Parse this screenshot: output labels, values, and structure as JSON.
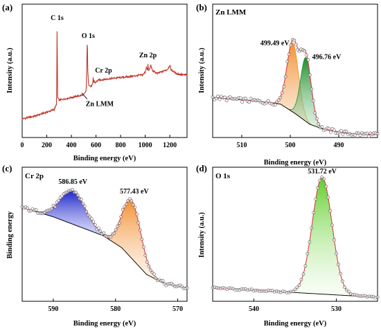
{
  "chart_data": [
    {
      "panel_label": "(a)",
      "type": "line",
      "xlabel": "Binding energy (eV)",
      "ylabel": "Intensity (a.u.)",
      "xlim": [
        0,
        1340
      ],
      "xticks": [
        0,
        200,
        400,
        600,
        800,
        1000,
        1200
      ],
      "ylim": [
        0,
        100
      ],
      "y_ticks_shown": false,
      "color": "#c0392b",
      "x": [
        0,
        100,
        200,
        260,
        280,
        282,
        284,
        286,
        288,
        300,
        350,
        400,
        450,
        500,
        520,
        525,
        527,
        529,
        531,
        533,
        540,
        560,
        574,
        577,
        580,
        586,
        590,
        620,
        700,
        800,
        900,
        980,
        1000,
        1010,
        1020,
        1022,
        1025,
        1030,
        1045,
        1060,
        1100,
        1180,
        1200,
        1210,
        1250,
        1300,
        1340
      ],
      "y": [
        14,
        16,
        19,
        21,
        25,
        60,
        86,
        60,
        30,
        28,
        29,
        30,
        31,
        32,
        35,
        50,
        66,
        72,
        66,
        50,
        40,
        38,
        40,
        45,
        41,
        43,
        41,
        43,
        44,
        45,
        46,
        47,
        49,
        53,
        50,
        57,
        51,
        50,
        54,
        50,
        48,
        51,
        54,
        51,
        48,
        47,
        47
      ],
      "annotations": [
        {
          "text": "C 1s",
          "x": 284,
          "y": 86
        },
        {
          "text": "O 1s",
          "x": 531,
          "y": 72
        },
        {
          "text": "Cr 2p",
          "x": 577,
          "y": 45
        },
        {
          "text": "Zn LMM",
          "x": 495,
          "y": 35
        },
        {
          "text": "Zn 2p",
          "x": 1022,
          "y": 57
        }
      ]
    },
    {
      "panel_label": "(b)",
      "title": "Zn LMM",
      "type": "area",
      "xlabel": "Binding energy (eV)",
      "ylabel": "Intensity (a.u.)",
      "xlim": [
        516,
        482
      ],
      "xticks": [
        510,
        500,
        490
      ],
      "ylim": [
        0,
        100
      ],
      "y_ticks_shown": false,
      "background": {
        "x": [
          516,
          506,
          502,
          499,
          496,
          493,
          488,
          482
        ],
        "y": [
          30,
          27,
          25,
          18,
          10,
          6,
          3,
          2
        ]
      },
      "series": [
        {
          "peak_center": 499.49,
          "amplitude": 52,
          "width": 1.2,
          "color": "#f28c28"
        },
        {
          "peak_center": 496.76,
          "amplitude": 48,
          "width": 1.1,
          "color": "#1e8c2a"
        }
      ],
      "annotations": [
        {
          "text": "499.49 eV",
          "x": 499.49
        },
        {
          "text": "496.76 eV",
          "x": 496.76
        }
      ]
    },
    {
      "panel_label": "(c)",
      "title": "Cr 2p",
      "type": "area",
      "xlabel": "Binding energy (eV)",
      "ylabel": "Binding energy",
      "xlim": [
        595,
        568.5
      ],
      "xticks": [
        590,
        580,
        570
      ],
      "ylim": [
        0,
        100
      ],
      "y_ticks_shown": false,
      "background": {
        "x": [
          595,
          590,
          586,
          582,
          579,
          577,
          575,
          572,
          568.5
        ],
        "y": [
          70,
          63,
          56,
          49,
          40,
          30,
          20,
          13,
          10
        ]
      },
      "series": [
        {
          "peak_center": 586.85,
          "amplitude": 25,
          "width": 2.0,
          "color": "#1a22c8"
        },
        {
          "peak_center": 577.43,
          "amplitude": 43,
          "width": 1.5,
          "color": "#f28c28"
        }
      ],
      "annotations": [
        {
          "text": "586.85 eV",
          "x": 586.85
        },
        {
          "text": "577.43 eV",
          "x": 577.43
        }
      ]
    },
    {
      "panel_label": "(d)",
      "title": "O 1s",
      "type": "area",
      "xlabel": "Binding energy (eV)",
      "ylabel": "Intensity (a.u.)",
      "xlim": [
        545,
        525
      ],
      "xticks": [
        540,
        530
      ],
      "ylim": [
        0,
        100
      ],
      "y_ticks_shown": false,
      "background": {
        "x": [
          545,
          525
        ],
        "y": [
          10,
          3
        ]
      },
      "series": [
        {
          "peak_center": 531.72,
          "amplitude": 87,
          "width": 1.2,
          "color": "#5fcf2a"
        }
      ],
      "annotations": [
        {
          "text": "531.72 eV",
          "x": 531.72
        }
      ]
    }
  ]
}
